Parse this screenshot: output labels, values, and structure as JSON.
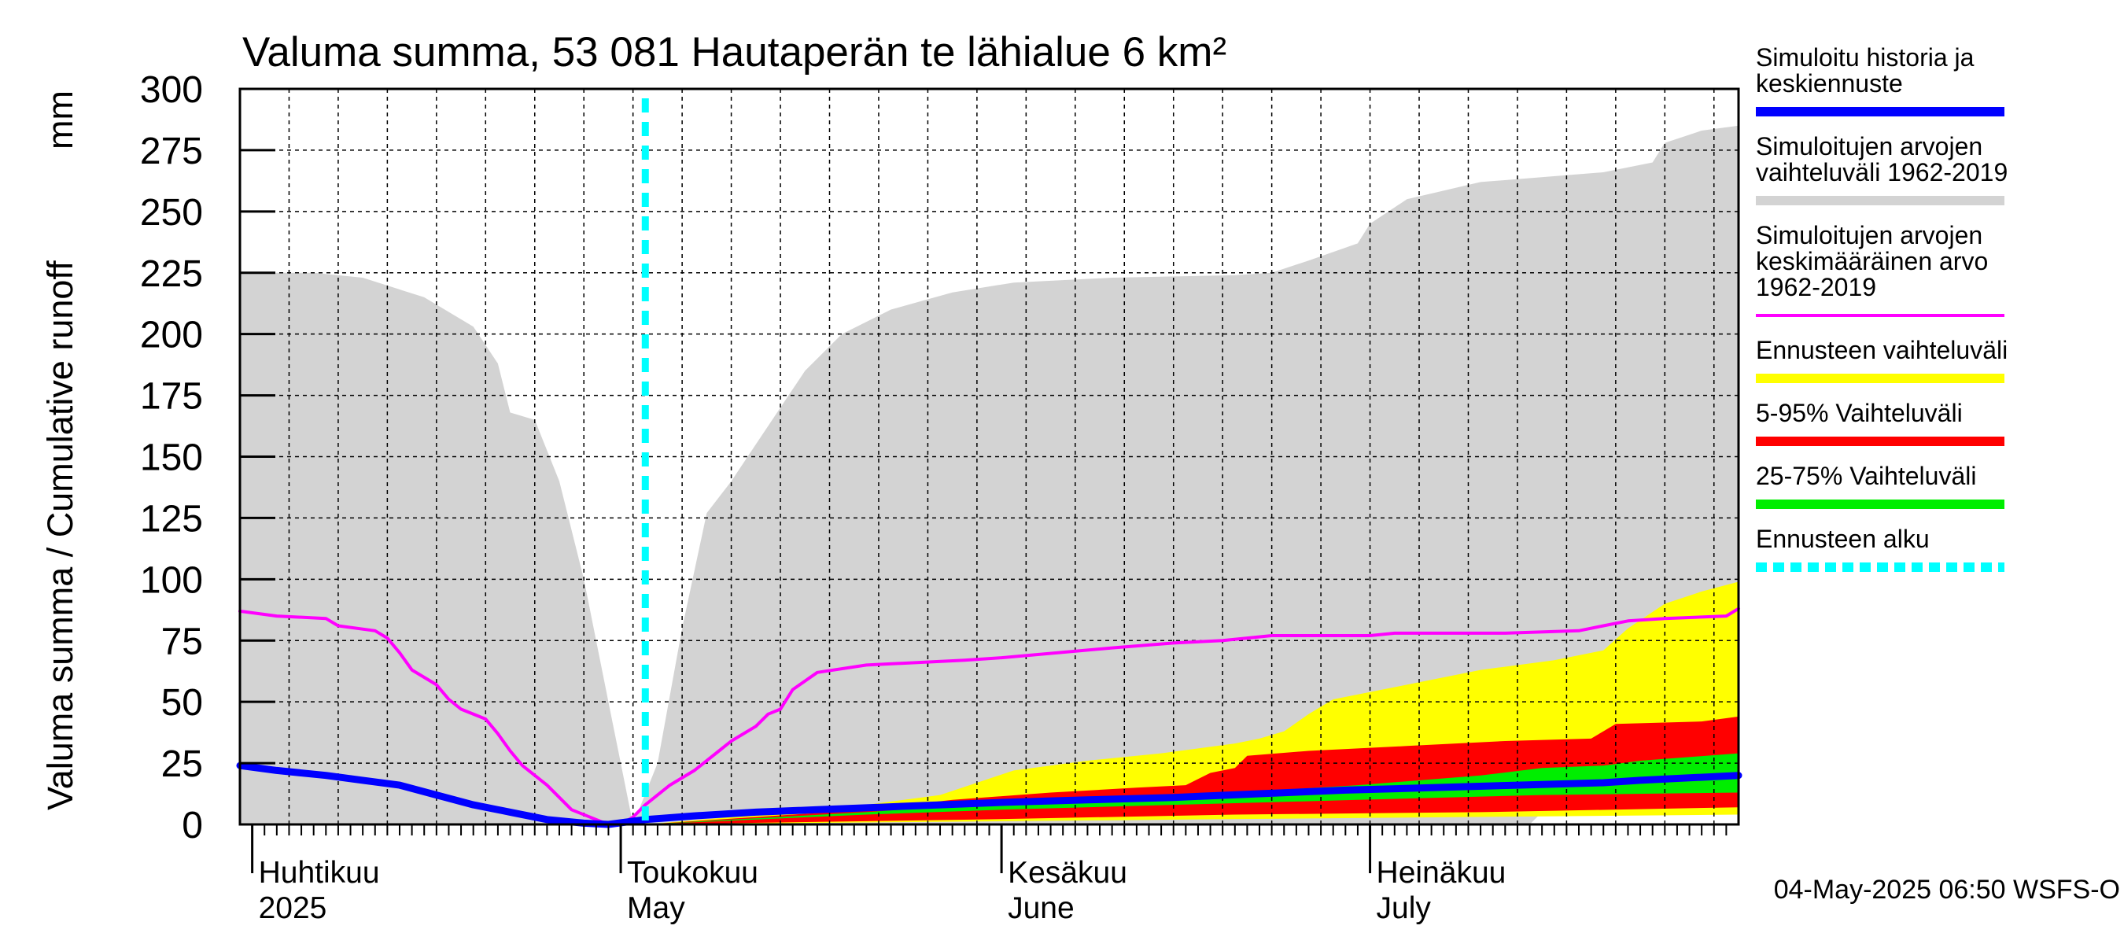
{
  "chart_data": {
    "type": "area",
    "title": "Valuma summa, 53 081 Hautaperän te lähialue 6 km²",
    "ylabel": "Valuma summa / Cumulative runoff",
    "yunit": "mm",
    "ylim": [
      0,
      300
    ],
    "yticks": [
      0,
      25,
      50,
      75,
      100,
      125,
      150,
      175,
      200,
      225,
      250,
      275,
      300
    ],
    "grid": true,
    "legend_placement": "right",
    "x_start": "2025-03-31",
    "x_end": "2025-07-31",
    "month_labels": [
      {
        "date": "2025-04-01",
        "line1": "Huhtikuu",
        "line2": "2025"
      },
      {
        "date": "2025-05-01",
        "line1": "Toukokuu",
        "line2": "May"
      },
      {
        "date": "2025-06-01",
        "line1": "Kesäkuu",
        "line2": "June"
      },
      {
        "date": "2025-07-01",
        "line1": "Heinäkuu",
        "line2": "July"
      }
    ],
    "forecast_start": "2025-05-03",
    "timestamp": "04-May-2025 06:50 WSFS-O",
    "colors": {
      "history_range": "#d3d3d3",
      "mean": "#ff00ff",
      "simulated": "#0000ff",
      "forecast_range": "#ffff00",
      "p5_95": "#ff0000",
      "p25_75": "#00ee00",
      "forecast_start": "#00ffff"
    },
    "legend": [
      {
        "key": "simulated",
        "lines": [
          "Simuloitu historia ja",
          "keskiennuste"
        ],
        "color": "#0000ff",
        "style": "solid"
      },
      {
        "key": "history_range",
        "lines": [
          "Simuloitujen arvojen",
          "vaihteluväli 1962-2019"
        ],
        "color": "#d3d3d3",
        "style": "solid"
      },
      {
        "key": "mean",
        "lines": [
          "Simuloitujen arvojen",
          "keskimääräinen arvo",
          "   1962-2019"
        ],
        "color": "#ff00ff",
        "style": "thin"
      },
      {
        "key": "forecast_range",
        "lines": [
          "Ennusteen vaihteluväli"
        ],
        "color": "#ffff00",
        "style": "solid"
      },
      {
        "key": "p5_95",
        "lines": [
          "5-95% Vaihteluväli"
        ],
        "color": "#ff0000",
        "style": "solid"
      },
      {
        "key": "p25_75",
        "lines": [
          "25-75% Vaihteluväli"
        ],
        "color": "#00ee00",
        "style": "solid"
      },
      {
        "key": "forecast_start",
        "lines": [
          "Ennusteen alku"
        ],
        "color": "#00ffff",
        "style": "dashed"
      }
    ],
    "series": {
      "history_upper": [
        [
          "2025-03-31",
          225
        ],
        [
          "2025-04-06",
          225
        ],
        [
          "2025-04-10",
          223
        ],
        [
          "2025-04-15",
          215
        ],
        [
          "2025-04-19",
          203
        ],
        [
          "2025-04-21",
          188
        ],
        [
          "2025-04-22",
          168
        ],
        [
          "2025-04-24",
          165
        ],
        [
          "2025-04-26",
          140
        ],
        [
          "2025-04-28",
          100
        ],
        [
          "2025-04-30",
          50
        ],
        [
          "2025-05-01",
          25
        ],
        [
          "2025-05-02",
          0
        ],
        [
          "2025-05-04",
          25
        ],
        [
          "2025-05-06",
          80
        ],
        [
          "2025-05-08",
          127
        ],
        [
          "2025-05-10",
          140
        ],
        [
          "2025-05-12",
          155
        ],
        [
          "2025-05-14",
          170
        ],
        [
          "2025-05-16",
          185
        ],
        [
          "2025-05-19",
          200
        ],
        [
          "2025-05-23",
          210
        ],
        [
          "2025-05-28",
          217
        ],
        [
          "2025-06-02",
          221
        ],
        [
          "2025-06-10",
          223
        ],
        [
          "2025-06-20",
          224
        ],
        [
          "2025-06-23",
          225
        ],
        [
          "2025-06-26",
          230
        ],
        [
          "2025-06-30",
          237
        ],
        [
          "2025-07-01",
          245
        ],
        [
          "2025-07-04",
          255
        ],
        [
          "2025-07-10",
          262
        ],
        [
          "2025-07-20",
          266
        ],
        [
          "2025-07-24",
          270
        ],
        [
          "2025-07-25",
          278
        ],
        [
          "2025-07-28",
          283
        ],
        [
          "2025-07-31",
          285
        ]
      ],
      "history_lower": [
        [
          "2025-03-31",
          0
        ],
        [
          "2025-07-14",
          0
        ],
        [
          "2025-07-15",
          5
        ],
        [
          "2025-07-31",
          6
        ]
      ],
      "mean": [
        [
          "2025-03-31",
          87
        ],
        [
          "2025-04-03",
          85
        ],
        [
          "2025-04-07",
          84
        ],
        [
          "2025-04-08",
          81
        ],
        [
          "2025-04-11",
          79
        ],
        [
          "2025-04-12",
          76
        ],
        [
          "2025-04-13",
          70
        ],
        [
          "2025-04-14",
          63
        ],
        [
          "2025-04-16",
          57
        ],
        [
          "2025-04-17",
          51
        ],
        [
          "2025-04-18",
          47
        ],
        [
          "2025-04-20",
          43
        ],
        [
          "2025-04-21",
          37
        ],
        [
          "2025-04-22",
          30
        ],
        [
          "2025-04-23",
          24
        ],
        [
          "2025-04-25",
          16
        ],
        [
          "2025-04-26",
          11
        ],
        [
          "2025-04-27",
          6
        ],
        [
          "2025-04-29",
          2
        ],
        [
          "2025-04-30",
          0
        ],
        [
          "2025-05-01",
          0
        ],
        [
          "2025-05-02",
          3
        ],
        [
          "2025-05-03",
          8
        ],
        [
          "2025-05-04",
          12
        ],
        [
          "2025-05-05",
          16
        ],
        [
          "2025-05-07",
          22
        ],
        [
          "2025-05-09",
          30
        ],
        [
          "2025-05-10",
          34
        ],
        [
          "2025-05-12",
          40
        ],
        [
          "2025-05-13",
          45
        ],
        [
          "2025-05-14",
          47
        ],
        [
          "2025-05-15",
          55
        ],
        [
          "2025-05-17",
          62
        ],
        [
          "2025-05-21",
          65
        ],
        [
          "2025-05-29",
          67
        ],
        [
          "2025-06-01",
          68
        ],
        [
          "2025-06-10",
          72
        ],
        [
          "2025-06-15",
          74
        ],
        [
          "2025-06-19",
          75
        ],
        [
          "2025-06-23",
          77
        ],
        [
          "2025-06-28",
          77
        ],
        [
          "2025-07-01",
          77
        ],
        [
          "2025-07-03",
          78
        ],
        [
          "2025-07-12",
          78
        ],
        [
          "2025-07-18",
          79
        ],
        [
          "2025-07-20",
          81
        ],
        [
          "2025-07-22",
          83
        ],
        [
          "2025-07-25",
          84
        ],
        [
          "2025-07-30",
          85
        ],
        [
          "2025-07-31",
          88
        ]
      ],
      "simulated": [
        [
          "2025-03-31",
          24
        ],
        [
          "2025-04-03",
          22
        ],
        [
          "2025-04-07",
          20
        ],
        [
          "2025-04-10",
          18
        ],
        [
          "2025-04-13",
          16
        ],
        [
          "2025-04-16",
          12
        ],
        [
          "2025-04-19",
          8
        ],
        [
          "2025-04-22",
          5
        ],
        [
          "2025-04-25",
          2
        ],
        [
          "2025-04-28",
          0.5
        ],
        [
          "2025-04-30",
          0
        ],
        [
          "2025-05-03",
          2
        ],
        [
          "2025-05-07",
          3.5
        ],
        [
          "2025-05-12",
          5
        ],
        [
          "2025-05-17",
          6
        ],
        [
          "2025-05-22",
          7
        ],
        [
          "2025-05-27",
          8
        ],
        [
          "2025-06-01",
          9
        ],
        [
          "2025-06-08",
          10
        ],
        [
          "2025-06-15",
          11
        ],
        [
          "2025-06-22",
          12.5
        ],
        [
          "2025-06-29",
          14
        ],
        [
          "2025-07-06",
          15
        ],
        [
          "2025-07-13",
          16
        ],
        [
          "2025-07-20",
          17
        ],
        [
          "2025-07-23",
          18
        ],
        [
          "2025-07-27",
          19
        ],
        [
          "2025-07-31",
          20
        ]
      ],
      "forecast_upper": [
        [
          "2025-05-03",
          0
        ],
        [
          "2025-05-10",
          3
        ],
        [
          "2025-05-16",
          5
        ],
        [
          "2025-05-21",
          8
        ],
        [
          "2025-05-27",
          12
        ],
        [
          "2025-05-30",
          17
        ],
        [
          "2025-06-02",
          22
        ],
        [
          "2025-06-08",
          26
        ],
        [
          "2025-06-14",
          29
        ],
        [
          "2025-06-20",
          33
        ],
        [
          "2025-06-22",
          35
        ],
        [
          "2025-06-24",
          38
        ],
        [
          "2025-06-26",
          45
        ],
        [
          "2025-06-28",
          51
        ],
        [
          "2025-07-04",
          57
        ],
        [
          "2025-07-10",
          63
        ],
        [
          "2025-07-16",
          67
        ],
        [
          "2025-07-20",
          71
        ],
        [
          "2025-07-22",
          80
        ],
        [
          "2025-07-25",
          90
        ],
        [
          "2025-07-28",
          95
        ],
        [
          "2025-07-31",
          99
        ]
      ],
      "forecast_lower": [
        [
          "2025-05-03",
          0
        ],
        [
          "2025-07-31",
          4
        ]
      ],
      "p95": [
        [
          "2025-05-03",
          0
        ],
        [
          "2025-05-21",
          6
        ],
        [
          "2025-05-28",
          10
        ],
        [
          "2025-06-05",
          13
        ],
        [
          "2025-06-12",
          15
        ],
        [
          "2025-06-16",
          16
        ],
        [
          "2025-06-18",
          21
        ],
        [
          "2025-06-20",
          23
        ],
        [
          "2025-06-21",
          28
        ],
        [
          "2025-06-26",
          30
        ],
        [
          "2025-07-04",
          32
        ],
        [
          "2025-07-12",
          34
        ],
        [
          "2025-07-19",
          35
        ],
        [
          "2025-07-20",
          38
        ],
        [
          "2025-07-21",
          41
        ],
        [
          "2025-07-28",
          42
        ],
        [
          "2025-07-31",
          44
        ]
      ],
      "p5": [
        [
          "2025-05-03",
          0
        ],
        [
          "2025-05-30",
          2
        ],
        [
          "2025-06-20",
          4
        ],
        [
          "2025-07-10",
          5
        ],
        [
          "2025-07-31",
          7
        ]
      ],
      "p75": [
        [
          "2025-05-03",
          0
        ],
        [
          "2025-05-21",
          5
        ],
        [
          "2025-06-01",
          9
        ],
        [
          "2025-06-10",
          11
        ],
        [
          "2025-06-20",
          13
        ],
        [
          "2025-06-30",
          16
        ],
        [
          "2025-07-10",
          20
        ],
        [
          "2025-07-15",
          23
        ],
        [
          "2025-07-20",
          24
        ],
        [
          "2025-07-23",
          26
        ],
        [
          "2025-07-31",
          29
        ]
      ],
      "p25": [
        [
          "2025-05-03",
          0
        ],
        [
          "2025-05-21",
          4
        ],
        [
          "2025-06-01",
          6
        ],
        [
          "2025-06-15",
          8
        ],
        [
          "2025-06-30",
          10
        ],
        [
          "2025-07-15",
          12
        ],
        [
          "2025-07-31",
          13
        ]
      ]
    }
  }
}
